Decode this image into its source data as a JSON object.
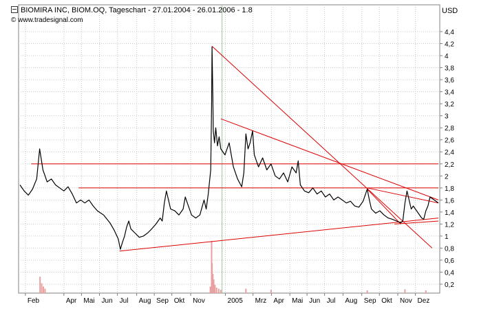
{
  "header": {
    "title": "BIOMIRA INC, BIOM.OQ, Tageschart - 27.01.2004 - 26.01.2006 - 1.8",
    "source": "© www.tradesignal.com",
    "unit": "USD"
  },
  "colors": {
    "price_line": "#000000",
    "trend_lines": "#dd0000",
    "volume": "#e8a0a0",
    "grid": "#c8c8c8",
    "year_divider": "#98c898"
  },
  "chart_data": {
    "type": "line",
    "title": "BIOMIRA INC, BIOM.OQ, Tageschart - 27.01.2004 - 26.01.2006 - 1.8",
    "ylabel": "USD",
    "ylim": [
      0.1,
      4.5
    ],
    "y_ticks": [
      "0,2",
      "0,4",
      "0,6",
      "0,8",
      "1",
      "1,2",
      "1,4",
      "1,6",
      "1,8",
      "2",
      "2,2",
      "2,4",
      "2,6",
      "2,8",
      "3",
      "3,2",
      "3,4",
      "3,6",
      "3,8",
      "4",
      "4,2",
      "4,4"
    ],
    "x_labels": [
      {
        "label": "Feb",
        "t": 0.013
      },
      {
        "label": "Apr",
        "t": 0.105
      },
      {
        "label": "Mai",
        "t": 0.147
      },
      {
        "label": "Jun",
        "t": 0.19
      },
      {
        "label": "Jul",
        "t": 0.233
      },
      {
        "label": "Aug",
        "t": 0.279
      },
      {
        "label": "Sep",
        "t": 0.321
      },
      {
        "label": "Okt",
        "t": 0.363
      },
      {
        "label": "Nov",
        "t": 0.408
      },
      {
        "label": "2005",
        "t": 0.491
      },
      {
        "label": "Mrz",
        "t": 0.557
      },
      {
        "label": "Apr",
        "t": 0.601
      },
      {
        "label": "Mai",
        "t": 0.645
      },
      {
        "label": "Jun",
        "t": 0.686
      },
      {
        "label": "Jul",
        "t": 0.728
      },
      {
        "label": "Aug",
        "t": 0.772
      },
      {
        "label": "Sep",
        "t": 0.817
      },
      {
        "label": "Okt",
        "t": 0.859
      },
      {
        "label": "Nov",
        "t": 0.903
      },
      {
        "label": "Dez",
        "t": 0.945
      }
    ],
    "year_divider_t": 0.483,
    "series": [
      {
        "points": [
          [
            0.0,
            1.85
          ],
          [
            0.01,
            1.75
          ],
          [
            0.02,
            1.68
          ],
          [
            0.03,
            1.78
          ],
          [
            0.04,
            1.95
          ],
          [
            0.047,
            2.45
          ],
          [
            0.055,
            2.1
          ],
          [
            0.065,
            1.9
          ],
          [
            0.075,
            1.95
          ],
          [
            0.085,
            1.85
          ],
          [
            0.095,
            1.8
          ],
          [
            0.105,
            1.75
          ],
          [
            0.115,
            1.82
          ],
          [
            0.125,
            1.7
          ],
          [
            0.135,
            1.55
          ],
          [
            0.145,
            1.6
          ],
          [
            0.155,
            1.55
          ],
          [
            0.165,
            1.6
          ],
          [
            0.175,
            1.5
          ],
          [
            0.185,
            1.42
          ],
          [
            0.2,
            1.35
          ],
          [
            0.215,
            1.22
          ],
          [
            0.225,
            1.1
          ],
          [
            0.235,
            0.95
          ],
          [
            0.24,
            0.78
          ],
          [
            0.245,
            0.9
          ],
          [
            0.25,
            1.0
          ],
          [
            0.255,
            1.15
          ],
          [
            0.26,
            1.25
          ],
          [
            0.265,
            1.12
          ],
          [
            0.275,
            1.05
          ],
          [
            0.285,
            0.98
          ],
          [
            0.295,
            1.0
          ],
          [
            0.305,
            1.05
          ],
          [
            0.315,
            1.12
          ],
          [
            0.325,
            1.2
          ],
          [
            0.335,
            1.3
          ],
          [
            0.34,
            1.25
          ],
          [
            0.345,
            1.55
          ],
          [
            0.35,
            1.75
          ],
          [
            0.355,
            1.6
          ],
          [
            0.36,
            1.45
          ],
          [
            0.37,
            1.42
          ],
          [
            0.38,
            1.35
          ],
          [
            0.39,
            1.45
          ],
          [
            0.395,
            1.65
          ],
          [
            0.4,
            1.55
          ],
          [
            0.41,
            1.35
          ],
          [
            0.42,
            1.3
          ],
          [
            0.43,
            1.35
          ],
          [
            0.44,
            1.6
          ],
          [
            0.445,
            1.45
          ],
          [
            0.45,
            1.7
          ],
          [
            0.456,
            2.1
          ],
          [
            0.458,
            3.2
          ],
          [
            0.459,
            4.15
          ],
          [
            0.461,
            3.3
          ],
          [
            0.462,
            2.75
          ],
          [
            0.465,
            2.55
          ],
          [
            0.468,
            2.8
          ],
          [
            0.472,
            2.5
          ],
          [
            0.476,
            2.65
          ],
          [
            0.48,
            2.45
          ],
          [
            0.49,
            2.35
          ],
          [
            0.5,
            2.55
          ],
          [
            0.51,
            2.15
          ],
          [
            0.52,
            1.95
          ],
          [
            0.53,
            1.82
          ],
          [
            0.535,
            2.05
          ],
          [
            0.54,
            2.7
          ],
          [
            0.545,
            2.45
          ],
          [
            0.55,
            2.55
          ],
          [
            0.556,
            2.75
          ],
          [
            0.56,
            2.35
          ],
          [
            0.57,
            2.15
          ],
          [
            0.58,
            2.3
          ],
          [
            0.59,
            2.1
          ],
          [
            0.6,
            2.2
          ],
          [
            0.61,
            2.0
          ],
          [
            0.62,
            1.95
          ],
          [
            0.63,
            2.05
          ],
          [
            0.64,
            1.9
          ],
          [
            0.65,
            2.15
          ],
          [
            0.66,
            2.05
          ],
          [
            0.665,
            2.25
          ],
          [
            0.67,
            1.85
          ],
          [
            0.68,
            1.75
          ],
          [
            0.69,
            1.72
          ],
          [
            0.7,
            1.8
          ],
          [
            0.71,
            1.7
          ],
          [
            0.72,
            1.75
          ],
          [
            0.73,
            1.65
          ],
          [
            0.74,
            1.7
          ],
          [
            0.75,
            1.6
          ],
          [
            0.76,
            1.65
          ],
          [
            0.77,
            1.6
          ],
          [
            0.78,
            1.55
          ],
          [
            0.79,
            1.58
          ],
          [
            0.8,
            1.5
          ],
          [
            0.81,
            1.48
          ],
          [
            0.82,
            1.58
          ],
          [
            0.83,
            1.78
          ],
          [
            0.835,
            1.6
          ],
          [
            0.84,
            1.45
          ],
          [
            0.85,
            1.38
          ],
          [
            0.86,
            1.42
          ],
          [
            0.87,
            1.35
          ],
          [
            0.88,
            1.3
          ],
          [
            0.89,
            1.28
          ],
          [
            0.9,
            1.25
          ],
          [
            0.91,
            1.22
          ],
          [
            0.915,
            1.25
          ],
          [
            0.92,
            1.55
          ],
          [
            0.925,
            1.75
          ],
          [
            0.93,
            1.6
          ],
          [
            0.935,
            1.45
          ],
          [
            0.94,
            1.5
          ],
          [
            0.95,
            1.4
          ],
          [
            0.96,
            1.3
          ],
          [
            0.965,
            1.28
          ],
          [
            0.97,
            1.42
          ],
          [
            0.975,
            1.5
          ],
          [
            0.98,
            1.65
          ],
          [
            0.99,
            1.6
          ],
          [
            1.0,
            1.55
          ]
        ]
      }
    ],
    "volume": [
      [
        0.048,
        0.3
      ],
      [
        0.052,
        0.18
      ],
      [
        0.056,
        0.12
      ],
      [
        0.06,
        0.08
      ],
      [
        0.455,
        0.12
      ],
      [
        0.458,
        0.95
      ],
      [
        0.459,
        0.55
      ],
      [
        0.461,
        0.35
      ],
      [
        0.463,
        0.25
      ],
      [
        0.466,
        0.15
      ],
      [
        0.47,
        0.1
      ],
      [
        0.475,
        0.08
      ],
      [
        0.48,
        0.06
      ],
      [
        0.54,
        0.08
      ],
      [
        0.6,
        0.06
      ],
      [
        0.83,
        0.05
      ],
      [
        0.92,
        0.07
      ],
      [
        0.97,
        0.05
      ]
    ],
    "trend_lines": [
      [
        [
          0.027,
          2.2
        ],
        [
          1.0,
          2.2
        ]
      ],
      [
        [
          0.14,
          1.8
        ],
        [
          1.0,
          1.8
        ]
      ],
      [
        [
          0.46,
          4.15
        ],
        [
          0.985,
          0.8
        ]
      ],
      [
        [
          0.48,
          2.95
        ],
        [
          1.0,
          1.6
        ]
      ],
      [
        [
          0.238,
          0.75
        ],
        [
          1.0,
          1.3
        ]
      ],
      [
        [
          0.895,
          1.2
        ],
        [
          1.0,
          1.25
        ]
      ],
      [
        [
          0.83,
          1.8
        ],
        [
          1.0,
          1.55
        ]
      ],
      [
        [
          0.83,
          1.78
        ],
        [
          0.91,
          1.2
        ]
      ]
    ]
  }
}
